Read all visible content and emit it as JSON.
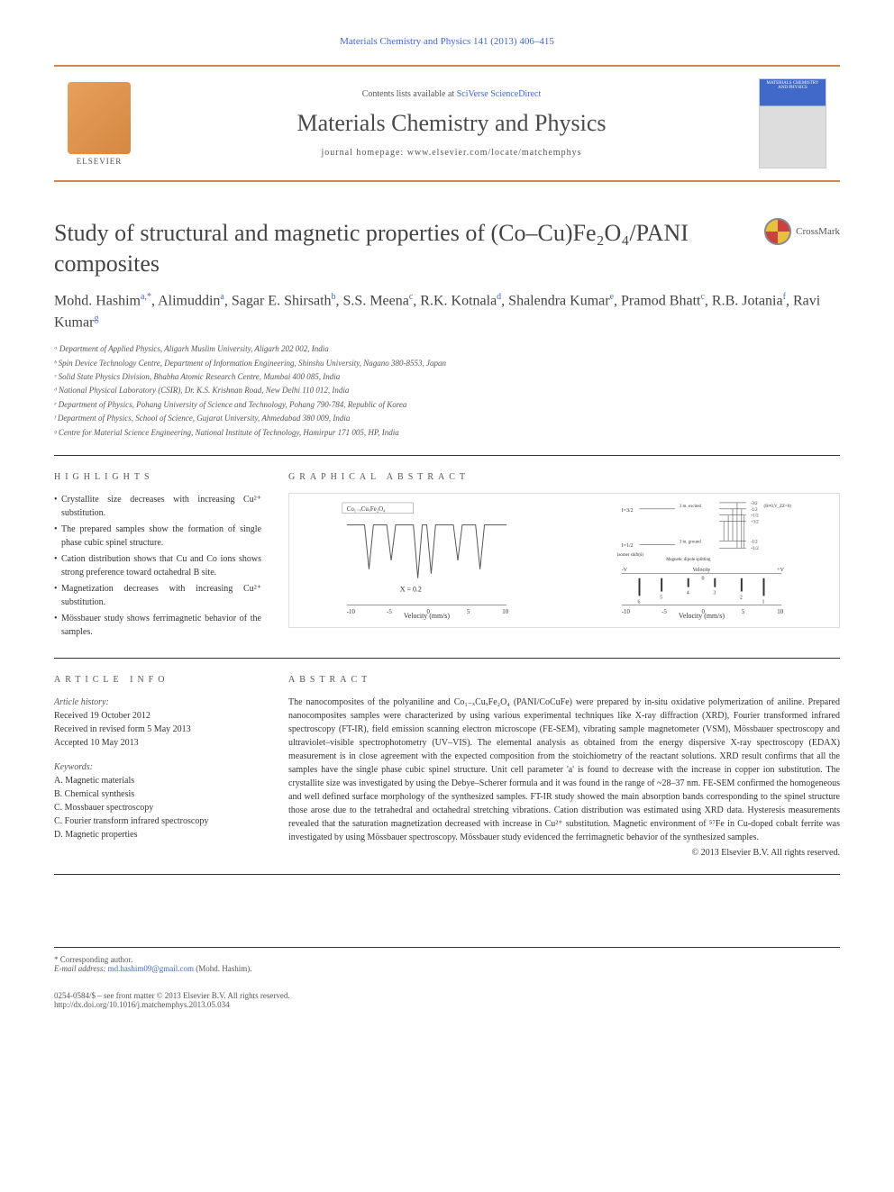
{
  "header": {
    "citation": "Materials Chemistry and Physics 141 (2013) 406–415",
    "contents_prefix": "Contents lists available at ",
    "contents_link": "SciVerse ScienceDirect",
    "journal_name": "Materials Chemistry and Physics",
    "homepage_prefix": "journal homepage: ",
    "homepage_url": "www.elsevier.com/locate/matchemphys",
    "publisher": "ELSEVIER",
    "cover_text": "MATERIALS CHEMISTRY AND PHYSICS"
  },
  "article": {
    "title": "Study of structural and magnetic properties of (Co–Cu)Fe₂O₄/PANI composites",
    "crossmark": "CrossMark",
    "authors_html": "Mohd. Hashim|a,*|, Alimuddin|a|, Sagar E. Shirsath|b|, S.S. Meena|c|, R.K. Kotnala|d|, Shalendra Kumar|e|, Pramod Bhatt|c|, R.B. Jotania|f|, Ravi Kumar|g|",
    "affiliations": [
      "ᵃ Department of Applied Physics, Aligarh Muslim University, Aligarh 202 002, India",
      "ᵇ Spin Device Technology Centre, Department of Information Engineering, Shinshu University, Nagano 380-8553, Japan",
      "ᶜ Solid State Physics Division, Bhabha Atomic Research Centre, Mumbai 400 085, India",
      "ᵈ National Physical Laboratory (CSIR), Dr. K.S. Krishnan Road, New Delhi 110 012, India",
      "ᵉ Department of Physics, Pohang University of Science and Technology, Pohang 790-784, Republic of Korea",
      "ᶠ Department of Physics, School of Science, Gujarat University, Ahmedabad 380 009, India",
      "ᵍ Centre for Material Science Engineering, National Institute of Technology, Hamirpur 171 005, HP, India"
    ]
  },
  "highlights": {
    "header": "HIGHLIGHTS",
    "items": [
      "Crystallite size decreases with increasing Cu²⁺ substitution.",
      "The prepared samples show the formation of single phase cubic spinel structure.",
      "Cation distribution shows that Cu and Co ions shows strong preference toward octahedral B site.",
      "Magnetization decreases with increasing Cu²⁺ substitution.",
      "Mössbauer study shows ferrimagnetic behavior of the samples."
    ]
  },
  "graphical_abstract": {
    "header": "GRAPHICAL ABSTRACT",
    "panel1": {
      "compound": "Co₁₋ₓCuₓFe₂O₄",
      "x_label": "X = 0.2",
      "xaxis_label": "Velocity (mm/s)",
      "xticks": [
        -10,
        -5,
        0,
        5,
        10
      ],
      "line_color": "#555555",
      "background": "#ffffff"
    },
    "panel2": {
      "xaxis_label": "Velocity (mm/s)",
      "xticks": [
        -10,
        -5,
        0,
        5,
        10
      ],
      "labels": [
        "I=3/2",
        "I=1/2",
        "Isomer shift (δ)",
        "3 m. ground",
        "3 m. excited",
        "Magnetic dipole splitting",
        "-V",
        "Velocity",
        "0",
        "+V"
      ],
      "transition_labels": [
        "-3/2",
        "-1/2",
        "+1/2",
        "+3/2",
        "-1/2",
        "+1/2"
      ],
      "eq_labels": [
        "(H ≠ 0, V_ZZ = 0)",
        "ΔEᴹ(e) = -g_eμ_N",
        "ΔEᴹ(g) = g_gμ_N"
      ],
      "numbers": [
        "1",
        "2",
        "3",
        "4",
        "5",
        "6"
      ],
      "line_color": "#555555"
    }
  },
  "article_info": {
    "header": "ARTICLE INFO",
    "history_label": "Article history:",
    "received": "Received 19 October 2012",
    "revised": "Received in revised form 5 May 2013",
    "accepted": "Accepted 10 May 2013",
    "keywords_label": "Keywords:",
    "keywords": [
      "A. Magnetic materials",
      "B. Chemical synthesis",
      "C. Mossbauer spectroscopy",
      "C. Fourier transform infrared spectroscopy",
      "D. Magnetic properties"
    ]
  },
  "abstract": {
    "header": "ABSTRACT",
    "text": "The nanocomposites of the polyaniline and Co₁₋ₓCuₓFe₂O₄ (PANI/CoCuFe) were prepared by in-situ oxidative polymerization of aniline. Prepared nanocomposites samples were characterized by using various experimental techniques like X-ray diffraction (XRD), Fourier transformed infrared spectroscopy (FT-IR), field emission scanning electron microscope (FE-SEM), vibrating sample magnetometer (VSM), Mössbauer spectroscopy and ultraviolet–visible spectrophotometry (UV–VIS). The elemental analysis as obtained from the energy dispersive X-ray spectroscopy (EDAX) measurement is in close agreement with the expected composition from the stoichiometry of the reactant solutions. XRD result confirms that all the samples have the single phase cubic spinel structure. Unit cell parameter 'a' is found to decrease with the increase in copper ion substitution. The crystallite size was investigated by using the Debye–Scherer formula and it was found in the range of ~28–37 nm. FE-SEM confirmed the homogeneous and well defined surface morphology of the synthesized samples. FT-IR study showed the main absorption bands corresponding to the spinel structure those arose due to the tetrahedral and octahedral stretching vibrations. Cation distribution was estimated using XRD data. Hysteresis measurements revealed that the saturation magnetization decreased with increase in Cu²⁺ substitution. Magnetic environment of ⁵⁷Fe in Cu-doped cobalt ferrite was investigated by using Mössbauer spectroscopy. Mössbauer study evidenced the ferrimagnetic behavior of the synthesized samples.",
    "copyright": "© 2013 Elsevier B.V. All rights reserved."
  },
  "footer": {
    "corresponding_label": "* Corresponding author.",
    "email_label": "E-mail address: ",
    "email": "md.hashim09@gmail.com",
    "email_suffix": " (Mohd. Hashim).",
    "front_matter": "0254-0584/$ – see front matter © 2013 Elsevier B.V. All rights reserved.",
    "doi": "http://dx.doi.org/10.1016/j.matchemphys.2013.05.034"
  },
  "colors": {
    "link": "#4169c9",
    "banner_border": "#d9824f",
    "text": "#333333",
    "muted": "#555555"
  }
}
